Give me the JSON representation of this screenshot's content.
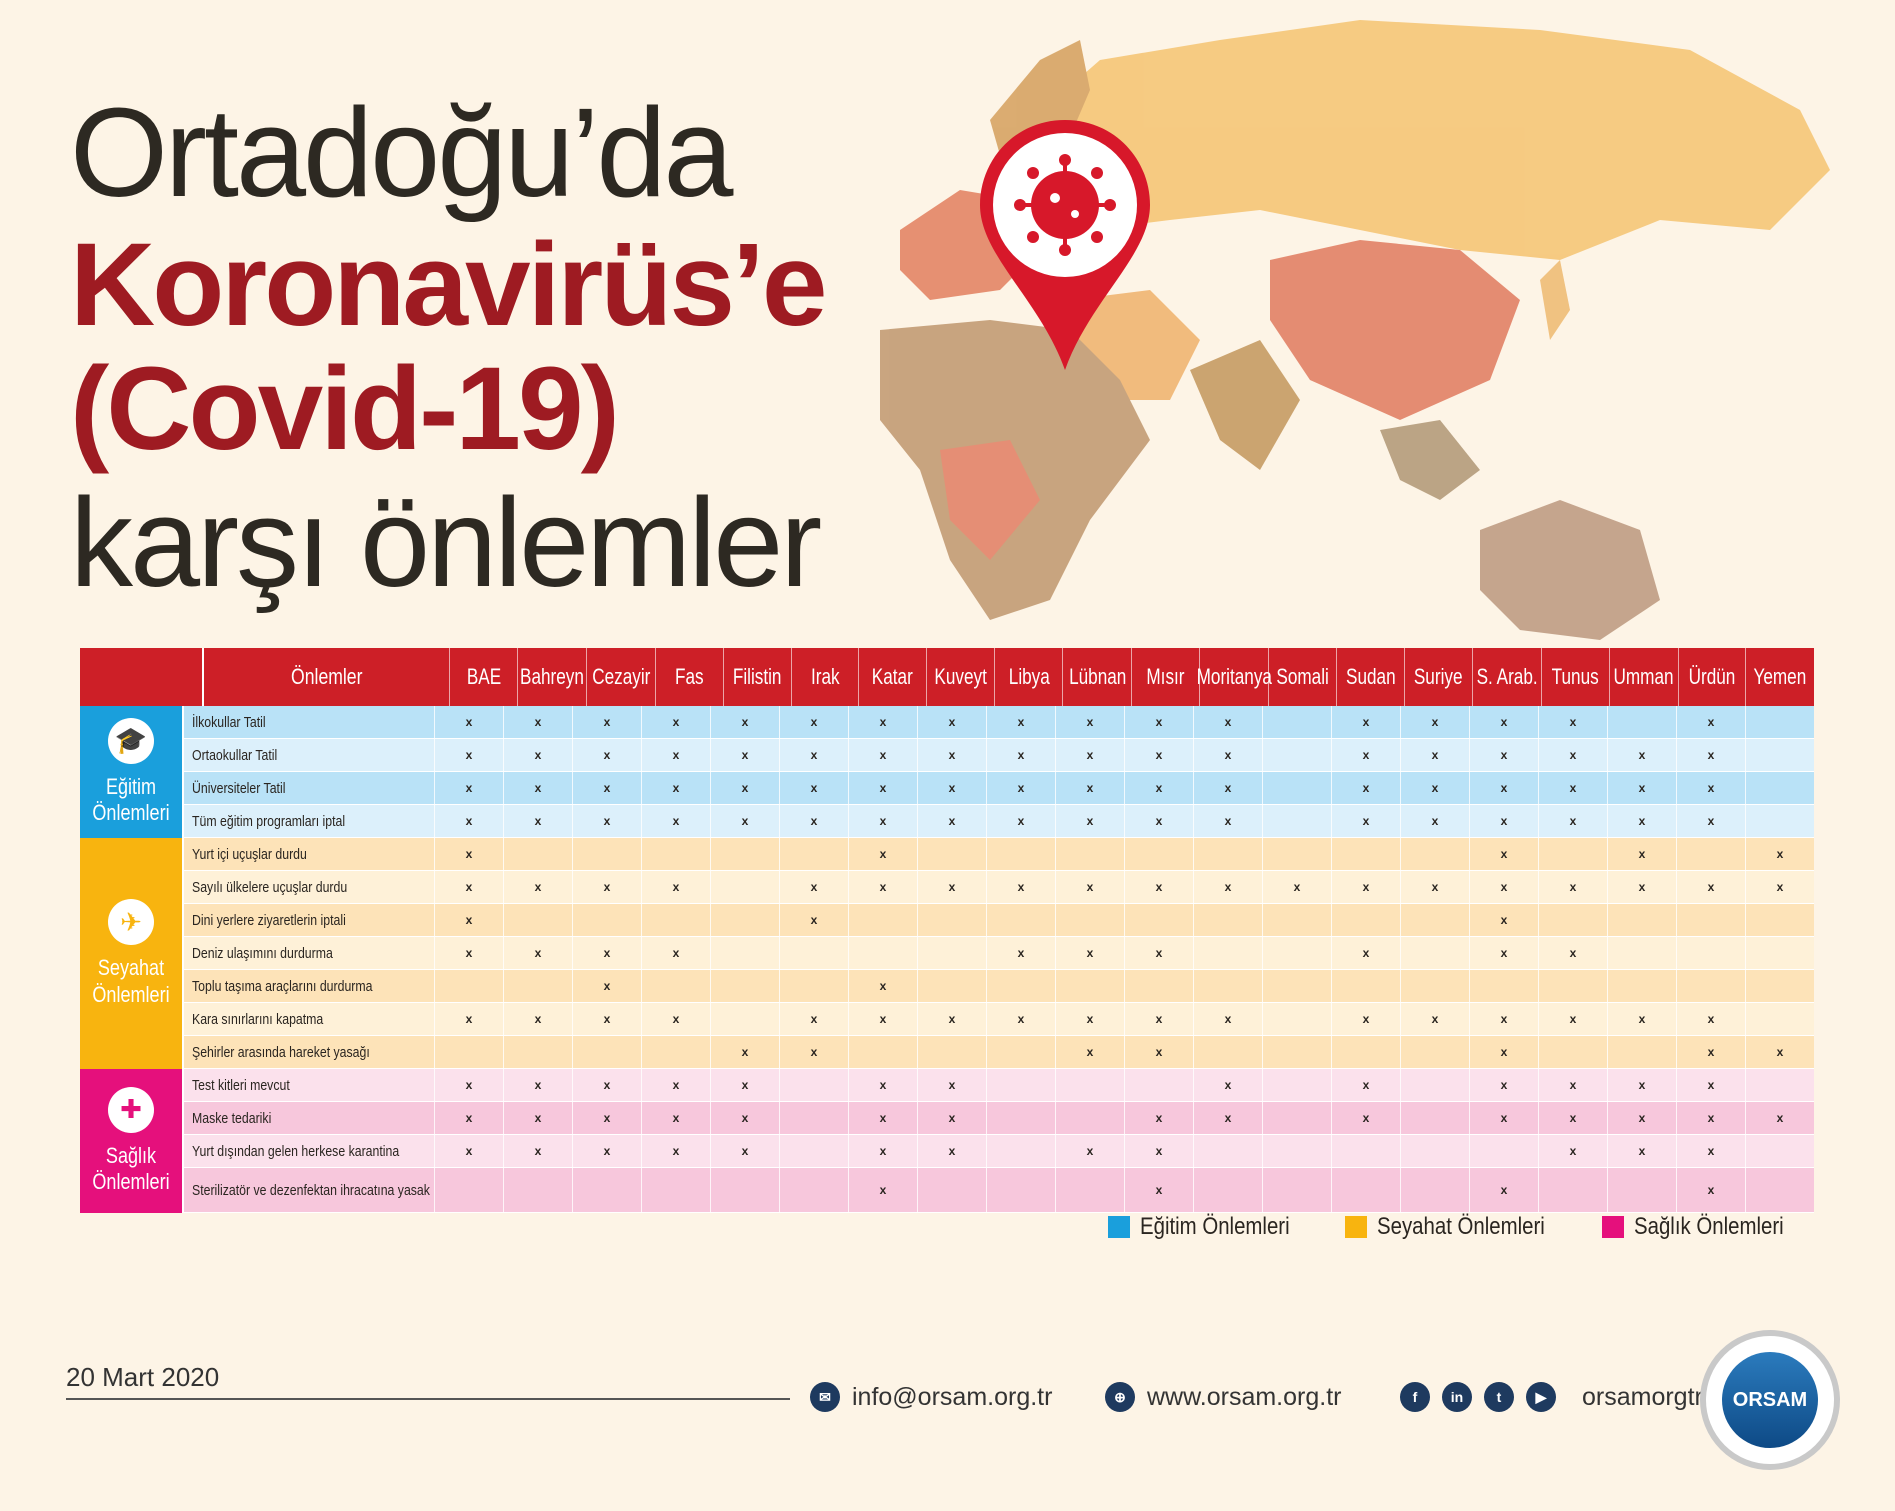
{
  "title": {
    "line1": "Ortadoğu’da",
    "line2": "Koronavirüs’e",
    "line3": "(Covid-19)",
    "line4": "karşı önlemler"
  },
  "table": {
    "measures_header": "Önlemler",
    "countries": [
      "BAE",
      "Bahreyn",
      "Cezayir",
      "Fas",
      "Filistin",
      "Irak",
      "Katar",
      "Kuveyt",
      "Libya",
      "Lübnan",
      "Mısır",
      "Moritanya",
      "Somali",
      "Sudan",
      "Suriye",
      "S. Arab.",
      "Tunus",
      "Umman",
      "Ürdün",
      "Yemen"
    ],
    "groups": [
      {
        "label": "Eğitim Önlemleri",
        "icon": "graduation-cap-icon",
        "color": "#1a9fdc",
        "rows": [
          {
            "name": "İlkokullar Tatil",
            "marks": [
              "x",
              "x",
              "x",
              "x",
              "x",
              "x",
              "x",
              "x",
              "x",
              "x",
              "x",
              "x",
              "",
              "x",
              "x",
              "x",
              "x",
              "",
              "x",
              ""
            ]
          },
          {
            "name": "Ortaokullar Tatil",
            "marks": [
              "x",
              "x",
              "x",
              "x",
              "x",
              "x",
              "x",
              "x",
              "x",
              "x",
              "x",
              "x",
              "",
              "x",
              "x",
              "x",
              "x",
              "x",
              "x",
              ""
            ]
          },
          {
            "name": "Üniversiteler Tatil",
            "marks": [
              "x",
              "x",
              "x",
              "x",
              "x",
              "x",
              "x",
              "x",
              "x",
              "x",
              "x",
              "x",
              "",
              "x",
              "x",
              "x",
              "x",
              "x",
              "x",
              ""
            ]
          },
          {
            "name": "Tüm eğitim programları iptal",
            "marks": [
              "x",
              "x",
              "x",
              "x",
              "x",
              "x",
              "x",
              "x",
              "x",
              "x",
              "x",
              "x",
              "",
              "x",
              "x",
              "x",
              "x",
              "x",
              "x",
              ""
            ]
          }
        ]
      },
      {
        "label": "Seyahat Önlemleri",
        "icon": "airplane-icon",
        "color": "#f8b40f",
        "rows": [
          {
            "name": "Yurt içi uçuşlar durdu",
            "marks": [
              "x",
              "",
              "",
              "",
              "",
              "",
              "x",
              "",
              "",
              "",
              "",
              "",
              "",
              "",
              "",
              "x",
              "",
              "x",
              "",
              "x"
            ]
          },
          {
            "name": "Sayılı ülkelere uçuşlar durdu",
            "marks": [
              "x",
              "x",
              "x",
              "x",
              "",
              "x",
              "x",
              "x",
              "x",
              "x",
              "x",
              "x",
              "x",
              "x",
              "x",
              "x",
              "x",
              "x",
              "x",
              "x"
            ]
          },
          {
            "name": "Dini yerlere ziyaretlerin iptali",
            "marks": [
              "x",
              "",
              "",
              "",
              "",
              "x",
              "",
              "",
              "",
              "",
              "",
              "",
              "",
              "",
              "",
              "x",
              "",
              "",
              "",
              ""
            ]
          },
          {
            "name": "Deniz ulaşımını durdurma",
            "marks": [
              "x",
              "x",
              "x",
              "x",
              "",
              "",
              "",
              "",
              "x",
              "x",
              "x",
              "",
              "",
              "x",
              "",
              "x",
              "x",
              "",
              "",
              ""
            ]
          },
          {
            "name": "Toplu taşıma araçlarını durdurma",
            "marks": [
              "",
              "",
              "x",
              "",
              "",
              "",
              "x",
              "",
              "",
              "",
              "",
              "",
              "",
              "",
              "",
              "",
              "",
              "",
              "",
              ""
            ]
          },
          {
            "name": "Kara sınırlarını kapatma",
            "marks": [
              "x",
              "x",
              "x",
              "x",
              "",
              "x",
              "x",
              "x",
              "x",
              "x",
              "x",
              "x",
              "",
              "x",
              "x",
              "x",
              "x",
              "x",
              "x",
              ""
            ]
          },
          {
            "name": "Şehirler arasında hareket yasağı",
            "marks": [
              "",
              "",
              "",
              "",
              "x",
              "x",
              "",
              "",
              "",
              "x",
              "x",
              "",
              "",
              "",
              "",
              "x",
              "",
              "",
              "x",
              "x"
            ]
          }
        ]
      },
      {
        "label": "Sağlık Önlemleri",
        "icon": "health-mask-icon",
        "color": "#e5107c",
        "rows": [
          {
            "name": "Test kitleri mevcut",
            "marks": [
              "x",
              "x",
              "x",
              "x",
              "x",
              "",
              "x",
              "x",
              "",
              "",
              "",
              "x",
              "",
              "x",
              "",
              "x",
              "x",
              "x",
              "x",
              ""
            ]
          },
          {
            "name": "Maske tedariki",
            "marks": [
              "x",
              "x",
              "x",
              "x",
              "x",
              "",
              "x",
              "x",
              "",
              "",
              "x",
              "x",
              "",
              "x",
              "",
              "x",
              "x",
              "x",
              "x",
              "x"
            ]
          },
          {
            "name": "Yurt dışından gelen herkese karantina",
            "marks": [
              "x",
              "x",
              "x",
              "x",
              "x",
              "",
              "x",
              "x",
              "",
              "x",
              "x",
              "",
              "",
              "",
              "",
              "",
              "x",
              "x",
              "x",
              ""
            ]
          },
          {
            "name": "Sterilizatör ve dezenfektan ihracatına yasak",
            "marks": [
              "",
              "",
              "",
              "",
              "",
              "",
              "x",
              "",
              "",
              "",
              "x",
              "",
              "",
              "",
              "",
              "x",
              "",
              "",
              "x",
              ""
            ]
          }
        ]
      }
    ]
  },
  "legend": [
    {
      "label": "Eğitim Önlemleri",
      "color": "#1a9fdc"
    },
    {
      "label": "Seyahat Önlemleri",
      "color": "#f8b40f"
    },
    {
      "label": "Sağlık Önlemleri",
      "color": "#e5107c"
    }
  ],
  "footer": {
    "date": "20 Mart 2020",
    "email": "info@orsam.org.tr",
    "website": "www.orsam.org.tr",
    "social_handle": "orsamorgtr",
    "logo_text": "ORSAM"
  }
}
